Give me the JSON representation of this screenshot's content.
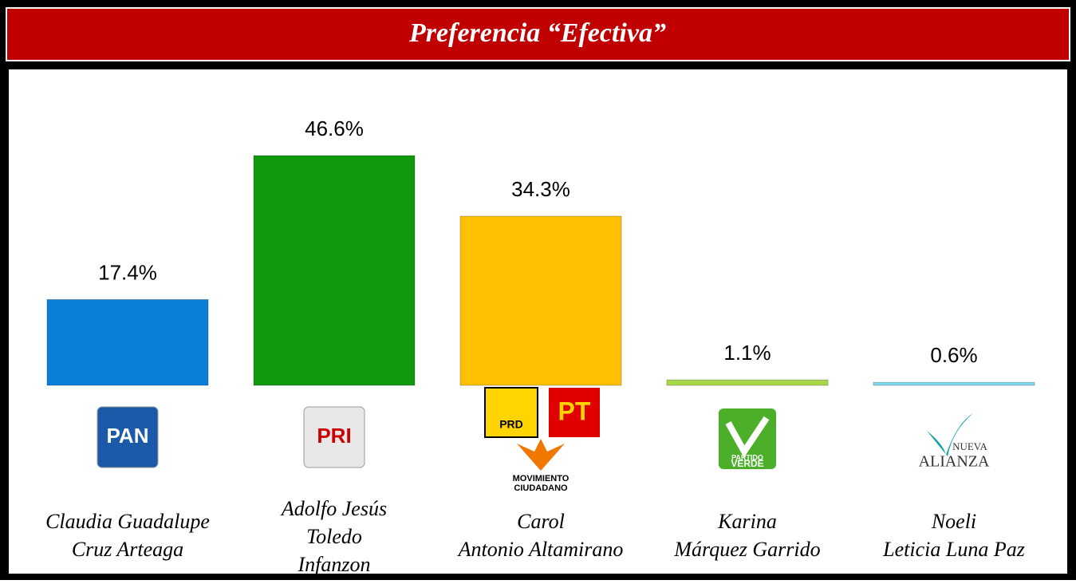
{
  "chart_data": {
    "type": "bar",
    "title": "Preferencia “Efectiva”",
    "categories": [
      [
        "Claudia Guadalupe",
        "Cruz Arteaga"
      ],
      [
        "Adolfo Jesús",
        "Toledo",
        "Infanzon"
      ],
      [
        "Carol",
        "Antonio Altamirano"
      ],
      [
        "Karina",
        "Márquez Garrido"
      ],
      [
        "Noeli",
        "Leticia Luna Paz"
      ]
    ],
    "values": [
      17.4,
      46.6,
      34.3,
      1.1,
      0.6
    ],
    "value_labels": [
      "17.4%",
      "46.6%",
      "34.3%",
      "1.1%",
      "0.6%"
    ],
    "colors": [
      "#0a7fd8",
      "#10990f",
      "#ffc000",
      "#a8d848",
      "#7fdcf0"
    ],
    "logos": [
      [
        "PAN"
      ],
      [
        "PRI"
      ],
      [
        "PRD",
        "PT",
        "MOVIMIENTO",
        "CIUDADANO"
      ],
      [
        "PARTIDO",
        "VERDE"
      ],
      [
        "NUEVA",
        "ALIANZA"
      ]
    ]
  }
}
